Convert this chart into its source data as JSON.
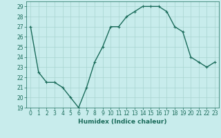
{
  "x": [
    0,
    1,
    2,
    3,
    4,
    5,
    6,
    7,
    8,
    9,
    10,
    11,
    12,
    13,
    14,
    15,
    16,
    17,
    18,
    19,
    20,
    21,
    22,
    23
  ],
  "y": [
    27,
    22.5,
    21.5,
    21.5,
    21,
    20,
    19,
    21,
    23.5,
    25,
    27,
    27,
    28,
    28.5,
    29,
    29,
    29,
    28.5,
    27,
    26.5,
    24,
    23.5,
    23,
    23.5
  ],
  "line_color": "#1a6b5a",
  "marker": "+",
  "marker_size": 3,
  "bg_color": "#c8ecec",
  "grid_color": "#a8d4d0",
  "xlabel": "Humidex (Indice chaleur)",
  "ylim": [
    19,
    29.5
  ],
  "xlim": [
    -0.5,
    23.5
  ],
  "yticks": [
    19,
    20,
    21,
    22,
    23,
    24,
    25,
    26,
    27,
    28,
    29
  ],
  "xticks": [
    0,
    1,
    2,
    3,
    4,
    5,
    6,
    7,
    8,
    9,
    10,
    11,
    12,
    13,
    14,
    15,
    16,
    17,
    18,
    19,
    20,
    21,
    22,
    23
  ],
  "tick_label_fontsize": 5.5,
  "xlabel_fontsize": 6.5,
  "linewidth": 1.0
}
